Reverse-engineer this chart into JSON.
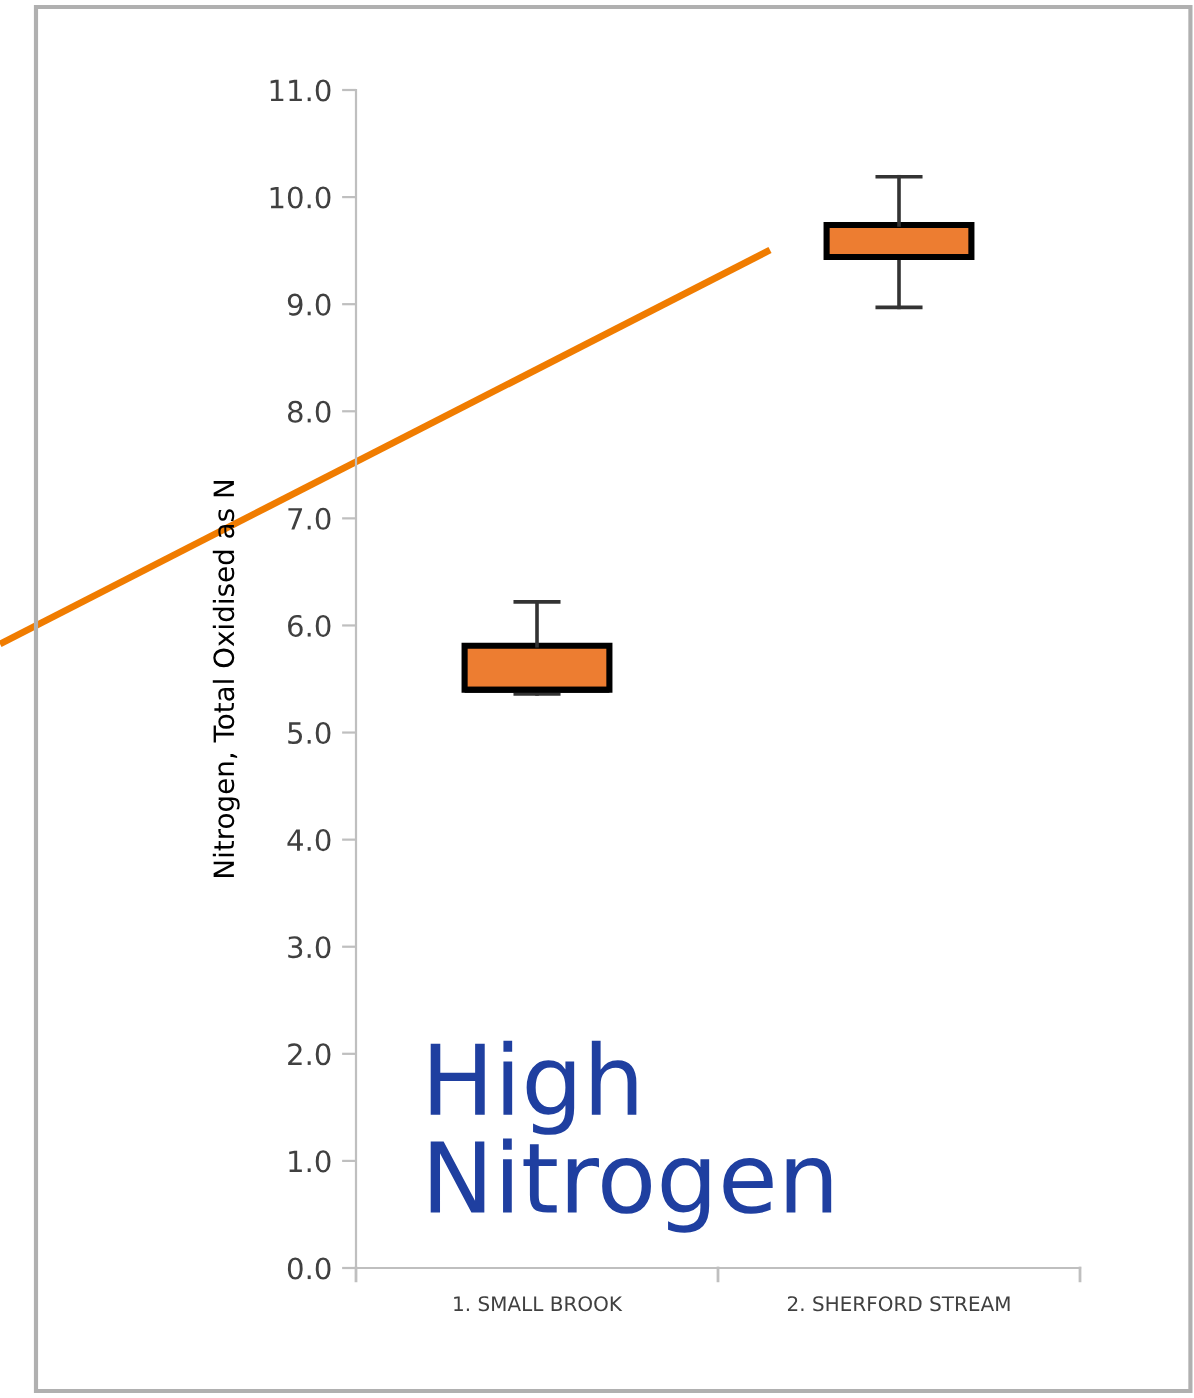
{
  "chart_data": {
    "type": "box",
    "categories": [
      "1. SMALL BROOK",
      "2. SHERFORD STREAM"
    ],
    "ylabel": "Nitrogen, Total Oxidised as N",
    "color": "#ed7d31",
    "boxes": [
      {
        "low": 5.36,
        "q1": 5.4,
        "median": 5.4,
        "q3": 5.81,
        "high": 6.22
      },
      {
        "low": 8.97,
        "q1": 9.44,
        "median": 9.44,
        "q3": 9.74,
        "high": 10.19
      }
    ],
    "ylim": [
      0,
      11
    ],
    "yticks": [
      {
        "value": 0,
        "label": "0.0"
      },
      {
        "value": 1,
        "label": "1.0"
      },
      {
        "value": 2,
        "label": "2.0"
      },
      {
        "value": 3,
        "label": "3.0"
      },
      {
        "value": 4,
        "label": "4.0"
      },
      {
        "value": 5,
        "label": "5.0"
      },
      {
        "value": 6,
        "label": "6.0"
      },
      {
        "value": 7,
        "label": "7.0"
      },
      {
        "value": 8,
        "label": "8.0"
      },
      {
        "value": 9,
        "label": "9.0"
      },
      {
        "value": 10,
        "label": "10.0"
      },
      {
        "value": 11,
        "label": "11.0"
      }
    ],
    "grid": false,
    "annotations": [
      "High\nNitrogen"
    ]
  }
}
